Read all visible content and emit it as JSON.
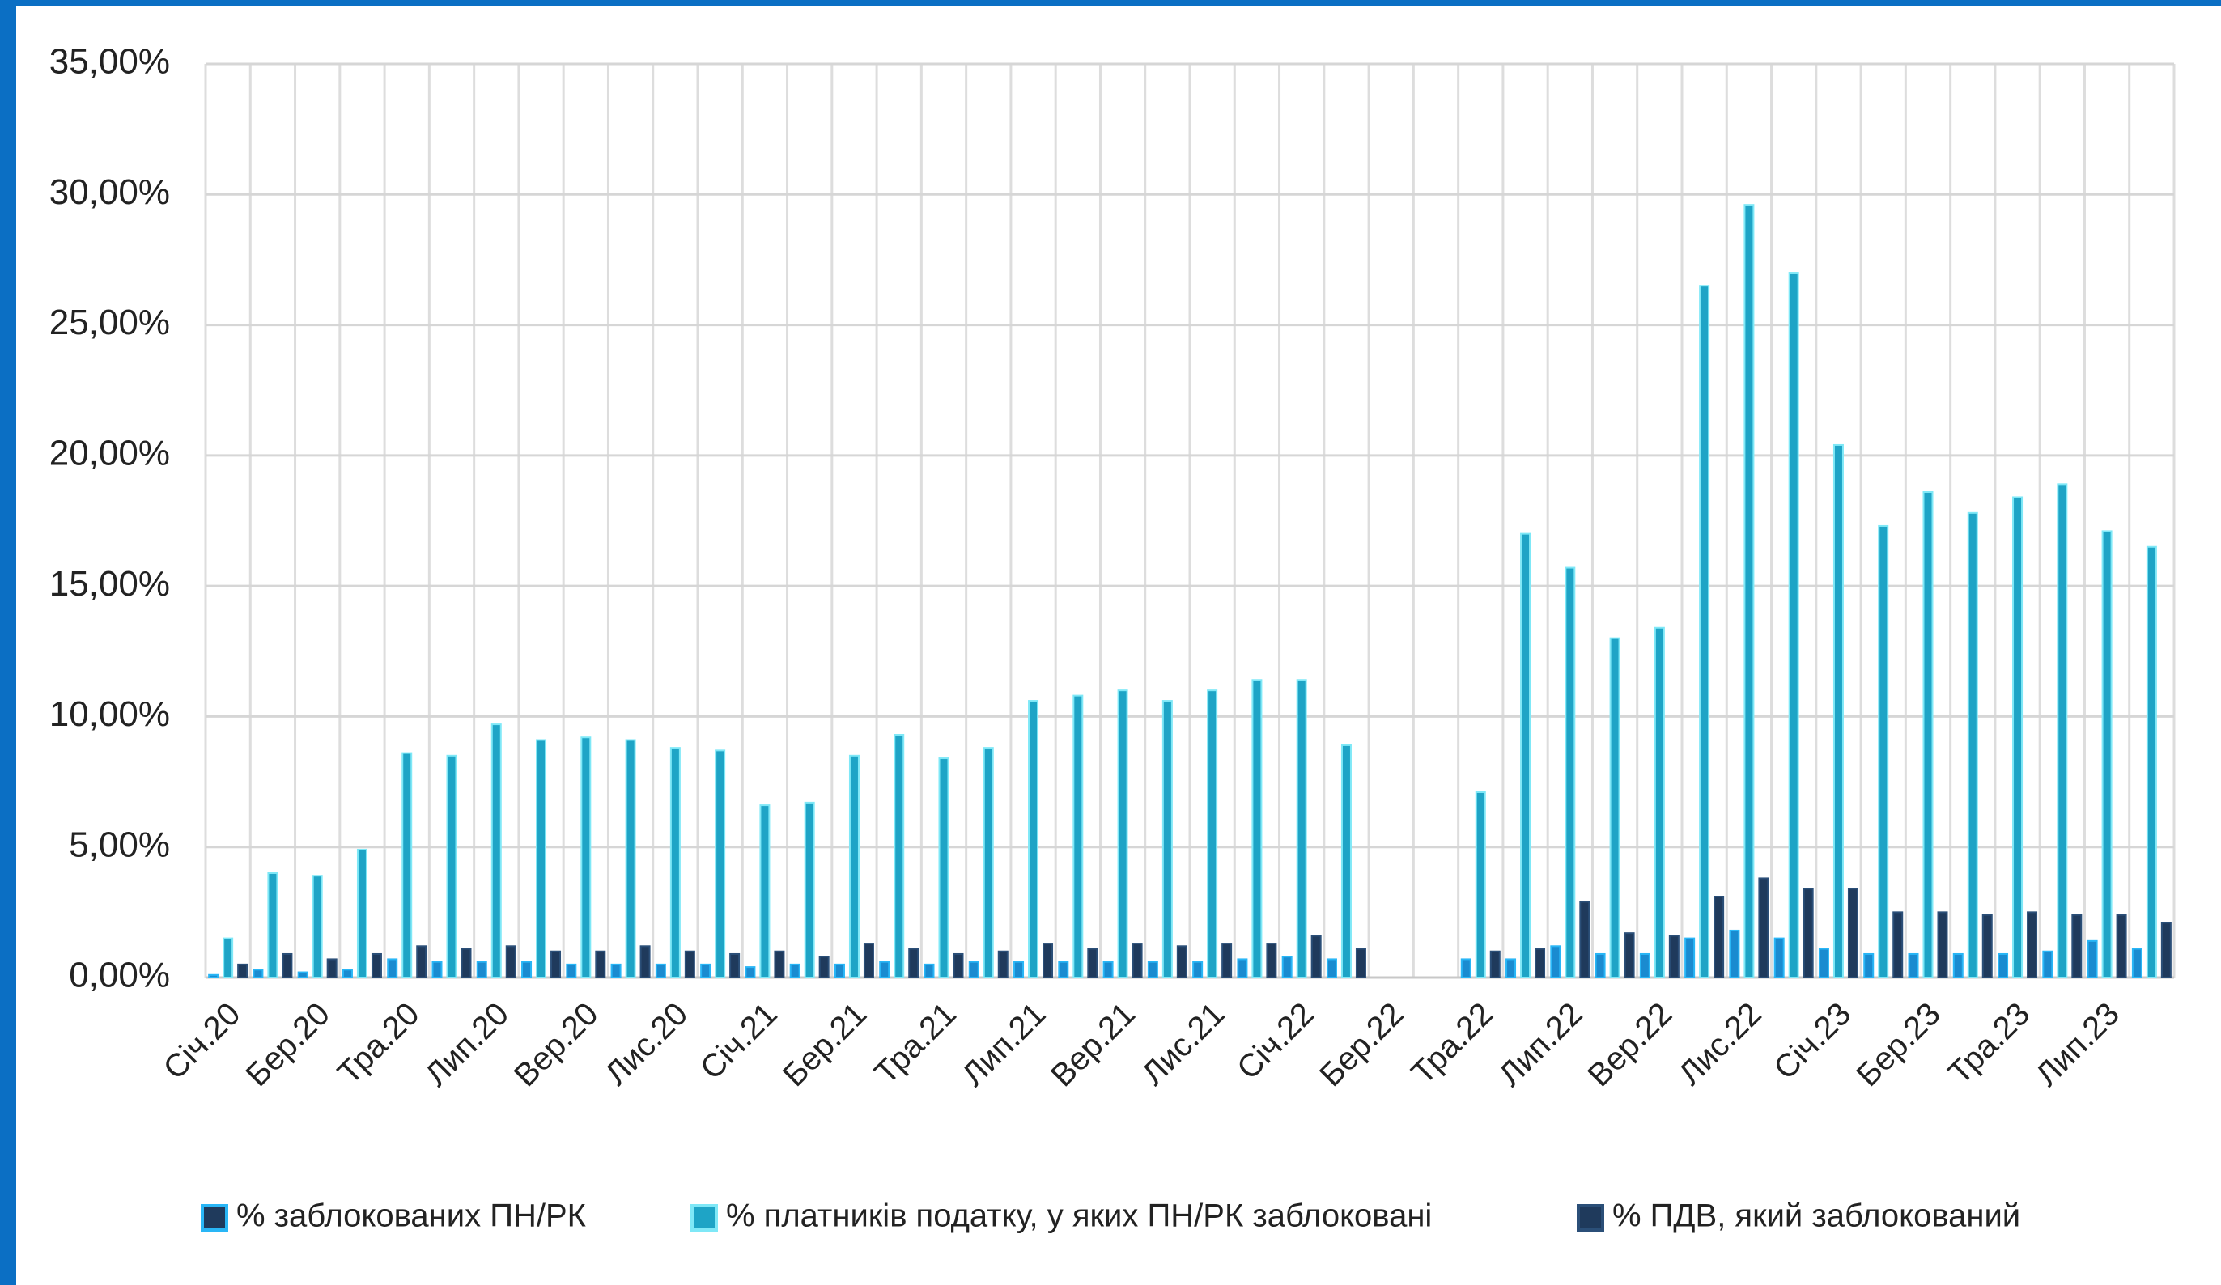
{
  "chart_data": {
    "type": "bar",
    "categories": [
      "Січ.20",
      null,
      "Бер.20",
      null,
      "Тра.20",
      null,
      "Лип.20",
      null,
      "Вер.20",
      null,
      "Лис.20",
      null,
      "Січ.21",
      null,
      "Бер.21",
      null,
      "Тра.21",
      null,
      "Лип.21",
      null,
      "Вер.21",
      null,
      "Лис.21",
      null,
      "Січ.22",
      null,
      "Бер.22",
      null,
      "Тра.22",
      null,
      "Лип.22",
      null,
      "Вер.22",
      null,
      "Лис.22",
      null,
      "Січ.23",
      null,
      "Бер.23",
      null,
      "Тра.23",
      null,
      "Лип.23",
      null
    ],
    "series": [
      {
        "name": "% заблокованих ПН/РК",
        "color": "#1a8bd0",
        "values": [
          0.1,
          0.3,
          0.2,
          0.3,
          0.7,
          0.6,
          0.6,
          0.6,
          0.5,
          0.5,
          0.5,
          0.5,
          0.4,
          0.5,
          0.5,
          0.6,
          0.5,
          0.6,
          0.6,
          0.6,
          0.6,
          0.6,
          0.6,
          0.7,
          0.8,
          0.7,
          null,
          null,
          0.7,
          0.7,
          1.2,
          0.9,
          0.9,
          1.5,
          1.8,
          1.5,
          1.1,
          0.9,
          0.9,
          0.9,
          0.9,
          1.0,
          1.4,
          1.1
        ]
      },
      {
        "name": "% платників податку, у яких ПН/РК заблоковані",
        "color": "#1ea4c6",
        "values": [
          1.5,
          4.0,
          3.9,
          4.9,
          8.6,
          8.5,
          9.7,
          9.1,
          9.2,
          9.1,
          8.8,
          8.7,
          6.6,
          6.7,
          8.5,
          9.3,
          8.4,
          8.8,
          10.6,
          10.8,
          11.0,
          10.6,
          11.0,
          11.4,
          11.4,
          8.9,
          null,
          null,
          7.1,
          17.0,
          15.7,
          13.0,
          13.4,
          26.5,
          29.6,
          27.0,
          20.4,
          17.3,
          18.6,
          17.8,
          18.4,
          18.9,
          17.1,
          16.5
        ]
      },
      {
        "name": "% ПДВ, який заблокований",
        "color": "#1f3a5c",
        "values": [
          0.5,
          0.9,
          0.7,
          0.9,
          1.2,
          1.1,
          1.2,
          1.0,
          1.0,
          1.2,
          1.0,
          0.9,
          1.0,
          0.8,
          1.3,
          1.1,
          0.9,
          1.0,
          1.3,
          1.1,
          1.3,
          1.2,
          1.3,
          1.3,
          1.6,
          1.1,
          null,
          null,
          1.0,
          1.1,
          2.9,
          1.7,
          1.6,
          3.1,
          3.8,
          3.4,
          3.4,
          2.5,
          2.5,
          2.4,
          2.5,
          2.4,
          2.4,
          2.1
        ]
      }
    ],
    "ylim": [
      0,
      35
    ],
    "yticks": [
      {
        "value": 0,
        "label": "0,00%"
      },
      {
        "value": 5,
        "label": "5,00%"
      },
      {
        "value": 10,
        "label": "10,00%"
      },
      {
        "value": 15,
        "label": "15,00%"
      },
      {
        "value": 20,
        "label": "20,00%"
      },
      {
        "value": 25,
        "label": "25,00%"
      },
      {
        "value": 30,
        "label": "30,00%"
      },
      {
        "value": 35,
        "label": "35,00%"
      }
    ],
    "grid": true,
    "legend": "bottom"
  }
}
